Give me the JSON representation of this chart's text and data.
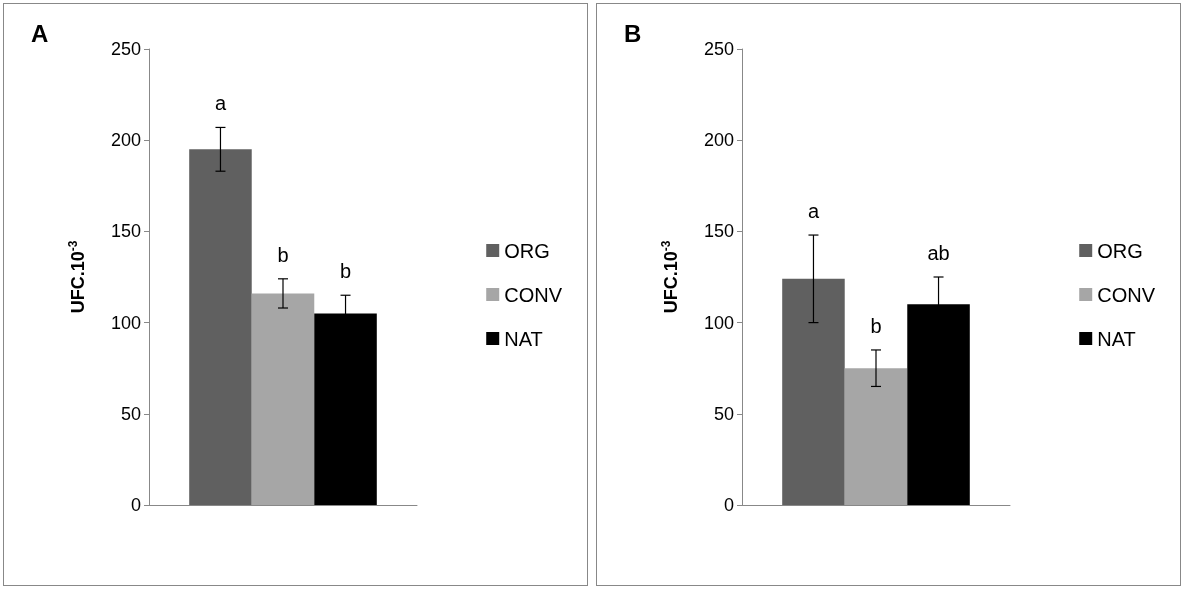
{
  "chart_data": [
    {
      "type": "bar",
      "title": "A",
      "categories": [
        null
      ],
      "ylabel": "UFC.10$^{-3}$",
      "ylim": [
        0,
        250
      ],
      "yticks": [
        0,
        50,
        100,
        150,
        200,
        250
      ],
      "grid": false,
      "legend": "right",
      "annotations": [
        "a",
        "b",
        "b"
      ],
      "series": [
        {
          "name": "ORG",
          "color": "#606060",
          "values": [
            195
          ],
          "errors": [
            12
          ]
        },
        {
          "name": "CONV",
          "color": "#a6a6a6",
          "values": [
            116
          ],
          "errors": [
            8
          ]
        },
        {
          "name": "NAT",
          "color": "#000000",
          "values": [
            105
          ],
          "errors": [
            10
          ]
        }
      ]
    },
    {
      "type": "bar",
      "title": "B",
      "categories": [
        null
      ],
      "ylabel": "UFC.10$^{-3}$",
      "ylim": [
        0,
        250
      ],
      "yticks": [
        0,
        50,
        100,
        150,
        200,
        250
      ],
      "grid": false,
      "legend": "right",
      "annotations": [
        "a",
        "b",
        "ab"
      ],
      "series": [
        {
          "name": "ORG",
          "color": "#606060",
          "values": [
            124
          ],
          "errors": [
            24
          ]
        },
        {
          "name": "CONV",
          "color": "#a6a6a6",
          "values": [
            75
          ],
          "errors": [
            10
          ]
        },
        {
          "name": "NAT",
          "color": "#000000",
          "values": [
            110
          ],
          "errors": [
            15
          ]
        }
      ]
    }
  ]
}
